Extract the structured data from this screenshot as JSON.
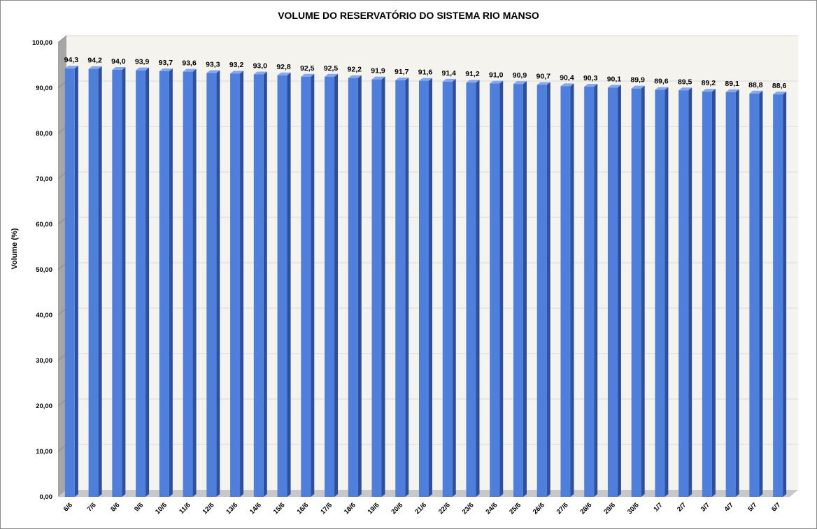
{
  "chart_data": {
    "type": "bar",
    "title": "VOLUME DO RESERVATÓRIO DO SISTEMA RIO MANSO",
    "xlabel": "",
    "ylabel": "Volume (%)",
    "ylim": [
      0,
      100
    ],
    "yticks": [
      "0,00",
      "10,00",
      "20,00",
      "30,00",
      "40,00",
      "50,00",
      "60,00",
      "70,00",
      "80,00",
      "90,00",
      "100,00"
    ],
    "grid": true,
    "legend": "none",
    "bar_style": "3d",
    "colors": {
      "bar_front": "#4f7fdc",
      "bar_side": "#2c4f9e",
      "bar_top": "#86a8ee",
      "plot_background": "#f4f3ee",
      "wall": "#a6a6a6",
      "floor": "#c8c8c8",
      "grid": "#d9d9d9"
    },
    "categories": [
      "6/6",
      "7/6",
      "8/6",
      "9/6",
      "10/6",
      "11/6",
      "12/6",
      "13/6",
      "14/6",
      "15/6",
      "16/6",
      "17/6",
      "18/6",
      "19/6",
      "20/6",
      "21/6",
      "22/6",
      "23/6",
      "24/6",
      "25/6",
      "26/6",
      "27/6",
      "28/6",
      "29/6",
      "30/6",
      "1/7",
      "2/7",
      "3/7",
      "4/7",
      "5/7",
      "6/7"
    ],
    "values": [
      94.3,
      94.2,
      94.0,
      93.9,
      93.7,
      93.6,
      93.3,
      93.2,
      93.0,
      92.8,
      92.5,
      92.5,
      92.2,
      91.9,
      91.7,
      91.6,
      91.4,
      91.2,
      91.0,
      90.9,
      90.7,
      90.4,
      90.3,
      90.1,
      89.9,
      89.6,
      89.5,
      89.2,
      89.1,
      88.8,
      88.6
    ],
    "data_labels": [
      "94,3",
      "94,2",
      "94,0",
      "93,9",
      "93,7",
      "93,6",
      "93,3",
      "93,2",
      "93,0",
      "92,8",
      "92,5",
      "92,5",
      "92,2",
      "91,9",
      "91,7",
      "91,6",
      "91,4",
      "91,2",
      "91,0",
      "90,9",
      "90,7",
      "90,4",
      "90,3",
      "90,1",
      "89,9",
      "89,6",
      "89,5",
      "89,2",
      "89,1",
      "88,8",
      "88,6"
    ]
  }
}
